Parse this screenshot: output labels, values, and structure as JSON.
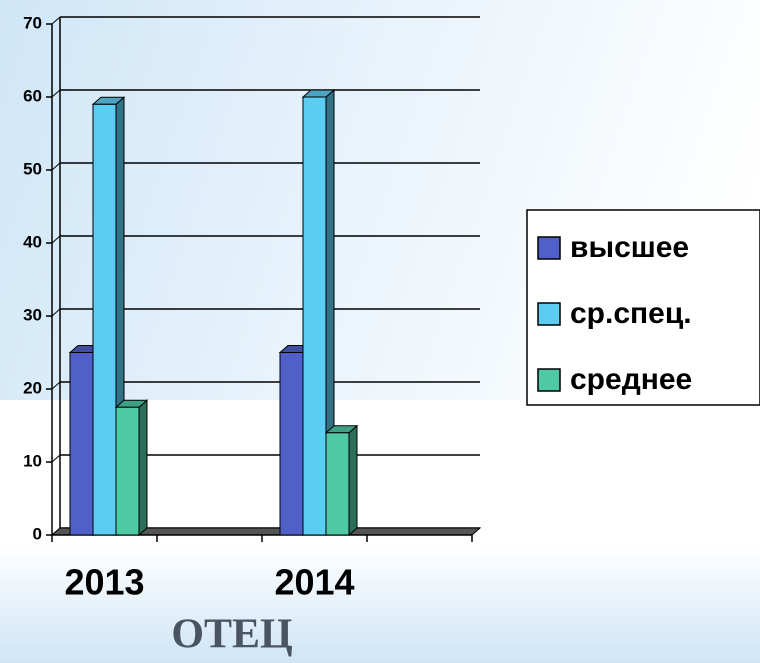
{
  "chart_data": {
    "type": "bar3d",
    "title": "ОТЕЦ",
    "categories": [
      "2013",
      null,
      "2014",
      null
    ],
    "series": [
      {
        "name": "высшее",
        "color": "#5060c8",
        "values": [
          25,
          null,
          25,
          null
        ]
      },
      {
        "name": "ср.спец.",
        "color": "#5ccdf2",
        "values": [
          59,
          null,
          60,
          null
        ]
      },
      {
        "name": "среднее",
        "color": "#4fc8a4",
        "values": [
          17.5,
          null,
          14,
          null
        ]
      }
    ],
    "ylim": [
      0,
      70
    ],
    "yticks": [
      0,
      10,
      20,
      30,
      40,
      50,
      60,
      70
    ],
    "grid": true,
    "legend": "right"
  }
}
